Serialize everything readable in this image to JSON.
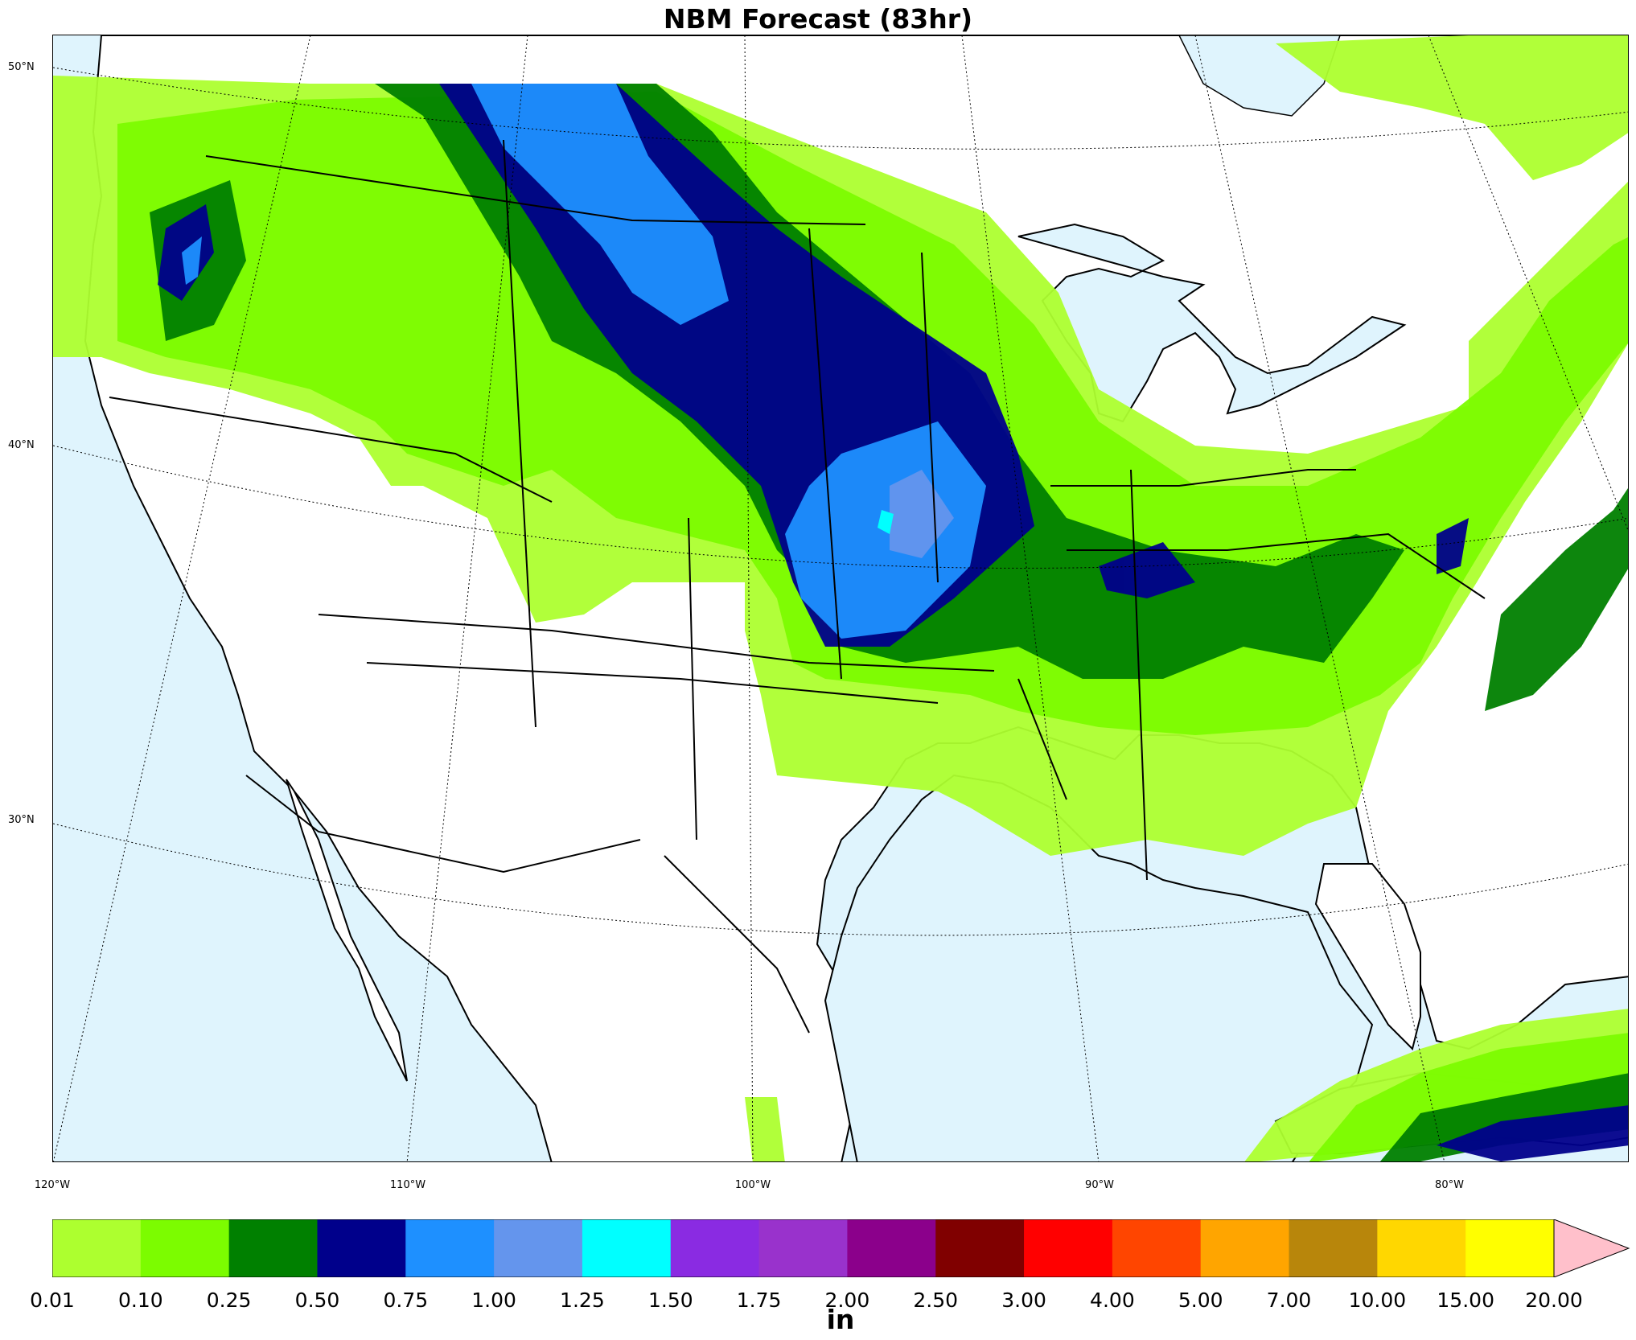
{
  "title": "NBM Forecast (83hr)",
  "latitude_labels": [
    "50°N",
    "40°N",
    "30°N"
  ],
  "longitude_labels": [
    "120°W",
    "110°W",
    "100°W",
    "90°W",
    "80°W"
  ],
  "colorbar": {
    "unit": "in",
    "tick_labels": [
      "0.01",
      "0.10",
      "0.25",
      "0.50",
      "0.75",
      "1.00",
      "1.25",
      "1.50",
      "1.75",
      "2.00",
      "2.50",
      "3.00",
      "4.00",
      "5.00",
      "7.00",
      "10.00",
      "15.00",
      "20.00"
    ],
    "colors": [
      "#adff2f",
      "#7cfc00",
      "#008000",
      "#00008b",
      "#1e90ff",
      "#6495ed",
      "#00ffff",
      "#8a2be2",
      "#9932cc",
      "#8b008b",
      "#800000",
      "#ff0000",
      "#ff4500",
      "#ffa500",
      "#b8860b",
      "#ffd700",
      "#ffff00"
    ],
    "over_color": "#ffc0cb"
  },
  "map_colors": {
    "ocean": "#dff4fd",
    "land": "#ffffff",
    "borders": "#000000"
  }
}
